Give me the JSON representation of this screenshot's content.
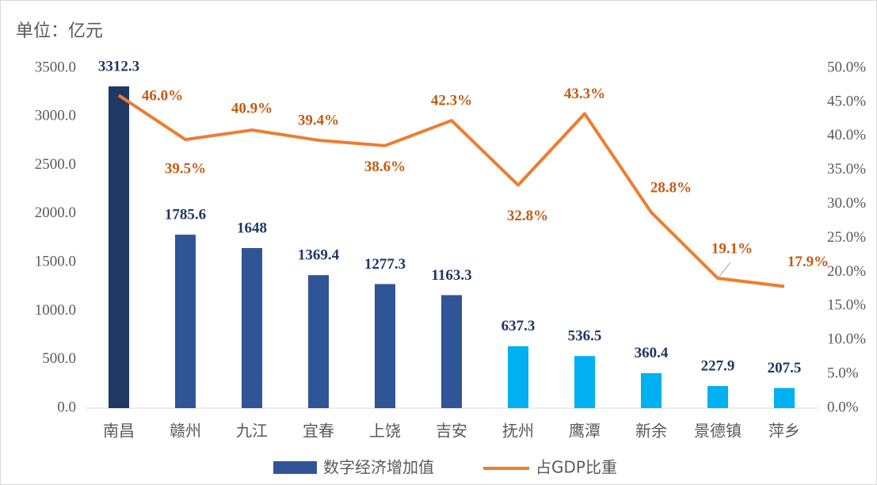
{
  "chart_data": {
    "type": "bar_line",
    "y_label": "单位：亿元",
    "categories": [
      "南昌",
      "赣州",
      "九江",
      "宜春",
      "上饶",
      "吉安",
      "抚州",
      "鹰潭",
      "新余",
      "景德镇",
      "萍乡"
    ],
    "series": [
      {
        "name": "数字经济增加值",
        "type": "bar",
        "colors": [
          "#1f3864",
          "#2f5597",
          "#2f5597",
          "#2f5597",
          "#2f5597",
          "#2f5597",
          "#00b0f0",
          "#00b0f0",
          "#00b0f0",
          "#00b0f0",
          "#00b0f0"
        ],
        "values": [
          3312.3,
          1785.6,
          1648.0,
          1369.4,
          1277.3,
          1163.3,
          637.3,
          536.5,
          360.4,
          227.9,
          207.5
        ]
      },
      {
        "name": "占GDP比重",
        "type": "line",
        "axis": "y2",
        "color": "#ed7d31",
        "values": [
          46.0,
          39.5,
          40.9,
          39.4,
          38.6,
          42.3,
          32.8,
          43.3,
          28.8,
          19.1,
          17.9
        ],
        "value_labels": [
          "46.0%",
          "39.5%",
          "40.9%",
          "39.4%",
          "38.6%",
          "42.3%",
          "32.8%",
          "43.3%",
          "28.8%",
          "19.1%",
          "17.9%"
        ]
      }
    ],
    "ylim": [
      0,
      3500
    ],
    "yticks": [
      {
        "value": 0,
        "label": "0.0"
      },
      {
        "value": 500,
        "label": "500.0"
      },
      {
        "value": 1000,
        "label": "1000.0"
      },
      {
        "value": 1500,
        "label": "1500.0"
      },
      {
        "value": 2000,
        "label": "2000.0"
      },
      {
        "value": 2500,
        "label": "2500.0"
      },
      {
        "value": 3000,
        "label": "3000.0"
      },
      {
        "value": 3500,
        "label": "3500.0"
      }
    ],
    "y2lim": [
      0,
      50
    ],
    "y2ticks": [
      {
        "value": 0,
        "label": "0.0%"
      },
      {
        "value": 5,
        "label": "5.0%"
      },
      {
        "value": 10,
        "label": "10.0%"
      },
      {
        "value": 15,
        "label": "15.0%"
      },
      {
        "value": 20,
        "label": "20.0%"
      },
      {
        "value": 25,
        "label": "25.0%"
      },
      {
        "value": 30,
        "label": "30.0%"
      },
      {
        "value": 35,
        "label": "35.0%"
      },
      {
        "value": 40,
        "label": "40.0%"
      },
      {
        "value": 45,
        "label": "45.0%"
      },
      {
        "value": 50,
        "label": "50.0%"
      }
    ]
  }
}
